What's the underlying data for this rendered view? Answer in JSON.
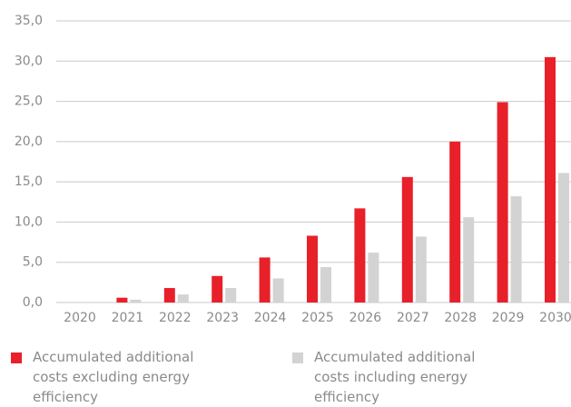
{
  "chart_data": {
    "type": "bar",
    "categories": [
      "2020",
      "2021",
      "2022",
      "2023",
      "2024",
      "2025",
      "2026",
      "2027",
      "2028",
      "2029",
      "2030"
    ],
    "series": [
      {
        "name": "Accumulated additional costs excluding energy efficiency",
        "color": "#e8202a",
        "values": [
          0,
          0.6,
          1.8,
          3.3,
          5.6,
          8.3,
          11.7,
          15.6,
          20.0,
          24.9,
          30.5
        ]
      },
      {
        "name": "Accumulated additional costs including energy efficiency",
        "color": "#d3d3d3",
        "values": [
          0,
          0.35,
          1.0,
          1.8,
          3.0,
          4.4,
          6.2,
          8.2,
          10.6,
          13.2,
          16.1
        ]
      }
    ],
    "ylim": [
      0,
      35
    ],
    "yticks": [
      {
        "value": 0,
        "label": "0,0"
      },
      {
        "value": 5,
        "label": "5,0"
      },
      {
        "value": 10,
        "label": "10,0"
      },
      {
        "value": 15,
        "label": "15,0"
      },
      {
        "value": 20,
        "label": "20,0"
      },
      {
        "value": 25,
        "label": "25,0"
      },
      {
        "value": 30,
        "label": "30,0"
      },
      {
        "value": 35,
        "label": "35,0"
      }
    ],
    "grid": true,
    "legend": "bottom"
  }
}
